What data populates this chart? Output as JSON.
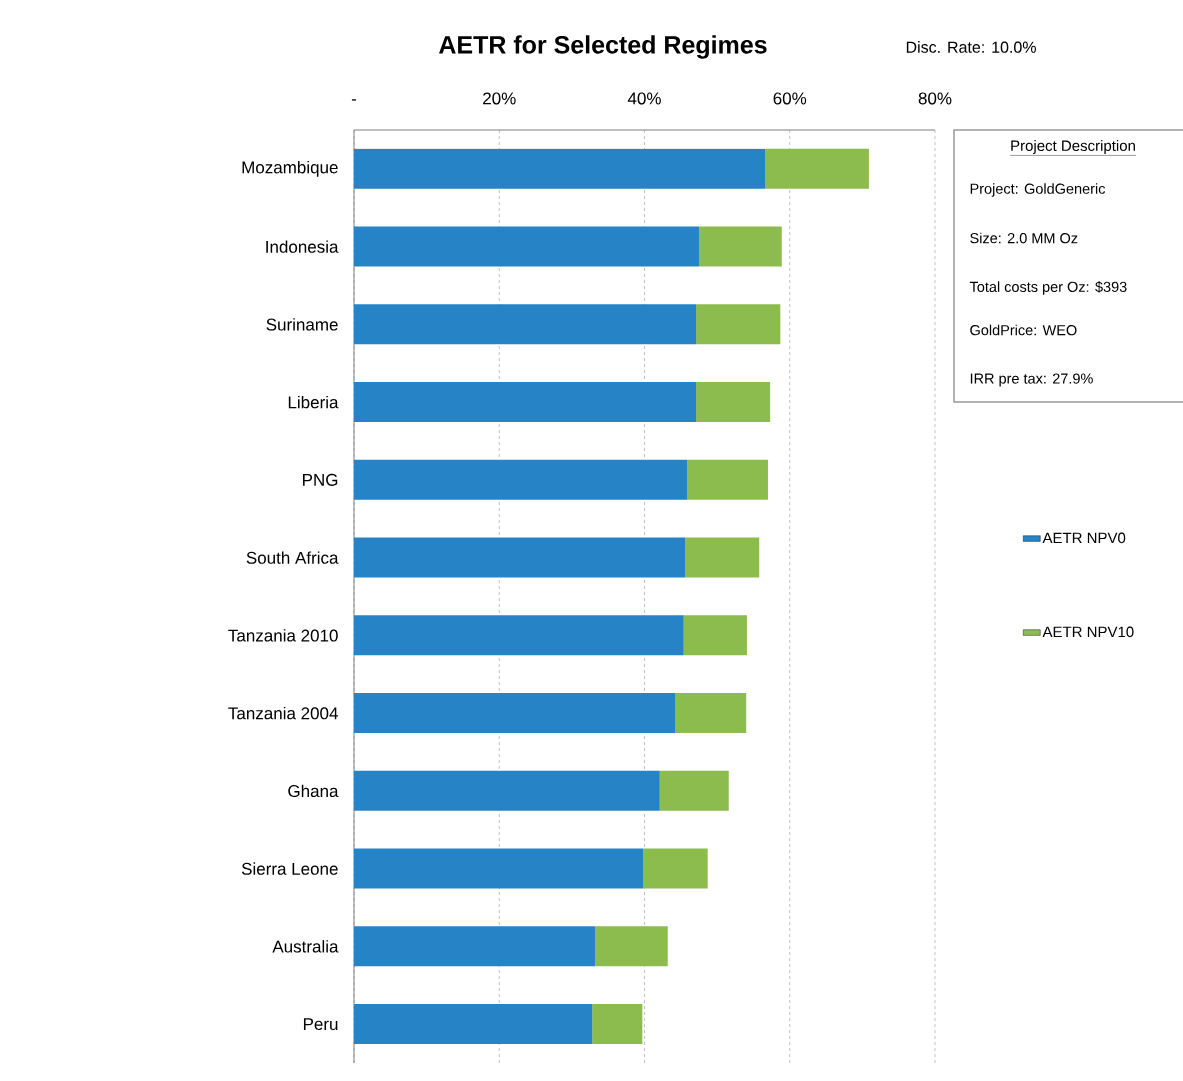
{
  "chart_data": {
    "type": "bar",
    "orientation": "horizontal",
    "stacked": true,
    "title": "AETR for Selected Regimes",
    "categories": [
      "Mozambique",
      "Indonesia",
      "Suriname",
      "Liberia",
      "PNG",
      "South Africa",
      "Tanzania 2010",
      "Tanzania 2004",
      "Ghana",
      "Sierra Leone",
      "Australia",
      "Peru"
    ],
    "series": [
      {
        "name": "AETR NPV0",
        "color": "#2683c6",
        "values": [
          56.6,
          47.5,
          47.1,
          47.1,
          45.9,
          45.6,
          45.4,
          44.2,
          42.1,
          39.8,
          33.2,
          32.8
        ]
      },
      {
        "name": "AETR NPV10",
        "color": "#8cbb4e",
        "values": [
          14.3,
          11.4,
          11.6,
          10.2,
          11.1,
          10.2,
          8.7,
          9.8,
          9.5,
          8.9,
          10.0,
          6.9
        ]
      }
    ],
    "xlim": [
      0,
      80
    ],
    "xticks": [
      {
        "value": 0,
        "label": "-"
      },
      {
        "value": 20,
        "label": "20%"
      },
      {
        "value": 40,
        "label": "40%"
      },
      {
        "value": 60,
        "label": "60%"
      },
      {
        "value": 80,
        "label": "80%"
      }
    ],
    "grid": "x",
    "legend": "right",
    "annotations": [
      "Disc. Rate: 10.0%",
      "Project Description",
      "Project: GoldGeneric",
      "Size: 2.0 MM Oz",
      "Total costs per Oz: $393",
      "GoldPrice: WEO",
      "IRR pre tax: 27.9%"
    ]
  }
}
